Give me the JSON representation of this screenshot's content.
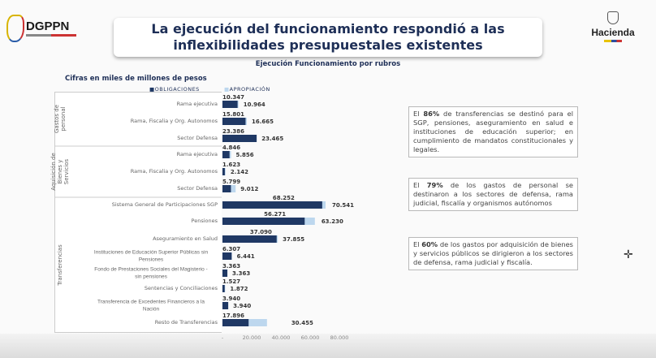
{
  "header": {
    "logo_text": "DGPPN",
    "title_line1": "La ejecución del funcionamiento respondió a las",
    "title_line2": "inflexibilidades presupuestales existentes",
    "ministry": "Hacienda"
  },
  "subtitle": "Ejecución Funcionamiento por rubros",
  "units": "Cifras en miles de millones de pesos",
  "chart_data": {
    "type": "bar",
    "orientation": "horizontal",
    "title": "Ejecución Funcionamiento por rubros",
    "legend_position": "top",
    "groups": [
      {
        "name": "Gastos de personal",
        "categories": [
          "Rama ejecutiva",
          "Rama, Fiscalia y Org. Autonomos",
          "Sector Defensa"
        ]
      },
      {
        "name": "Aquisición de Bienes y Servicios",
        "categories": [
          "Rama ejecutiva",
          "Rama, Fiscalia y Org. Autonomos",
          "Sector Defensa"
        ]
      },
      {
        "name": "Transferencias",
        "categories": [
          "Sistema General de Participaciones SGP",
          "Pensiones",
          "Aseguramiento en Salud",
          "Instituciones de Educación Superior Públicas sin Pensiones",
          "Fondo de Prestaciones Sociales del Magisterio - sin pensiones",
          "Sentencias y Conciliaciones",
          "Transferencia de Excedentes Financieros a la Nación",
          "Resto de Transferencias"
        ]
      }
    ],
    "series": [
      {
        "name": "OBLIGACIONES",
        "color": "#1f3864",
        "values": [
          10347,
          15801,
          23386,
          4846,
          1623,
          5799,
          68252,
          56271,
          37090,
          6307,
          3363,
          1527,
          3940,
          17896
        ],
        "labels": [
          "10.347",
          "15.801",
          "23.386",
          "4.846",
          "1.623",
          "5.799",
          "68.252",
          "56.271",
          "37.090",
          "6.307",
          "3.363",
          "1.527",
          "3.940",
          "17.896"
        ]
      },
      {
        "name": "APROPIACIÓN",
        "color": "#bdd7ee",
        "values": [
          10964,
          16665,
          23465,
          5856,
          2142,
          9012,
          70541,
          63230,
          37855,
          6441,
          3363,
          1872,
          3940,
          30455
        ],
        "labels": [
          "10.964",
          "16.665",
          "23.465",
          "5.856",
          "2.142",
          "9.012",
          "70.541",
          "63.230",
          "37.855",
          "6.441",
          "3.363",
          "1.872",
          "3.940",
          "30.455"
        ]
      }
    ],
    "xlim": [
      0,
      80000
    ],
    "xticks": [
      0,
      20000,
      40000,
      60000,
      80000
    ],
    "xtick_labels": [
      "-",
      "20.000",
      "40.000",
      "60.000",
      "80.000"
    ],
    "grid": false
  },
  "notes": [
    {
      "bold": "86%",
      "pre": "El ",
      "post": " de transferencias se destinó para el SGP, pensiones, aseguramiento en salud e instituciones de educación superior; en cumplimiento de mandatos constitucionales y legales."
    },
    {
      "bold": "79%",
      "pre": "El ",
      "post": " de los gastos de personal se destinaron a los sectores de defensa, rama judicial, fiscalía y organismos autónomos"
    },
    {
      "bold": "60%",
      "pre": "El ",
      "post": " de los gastos por adquisición de bienes y servicios públicos se dirigieron a los sectores de defensa, rama judicial y fiscalía."
    }
  ]
}
